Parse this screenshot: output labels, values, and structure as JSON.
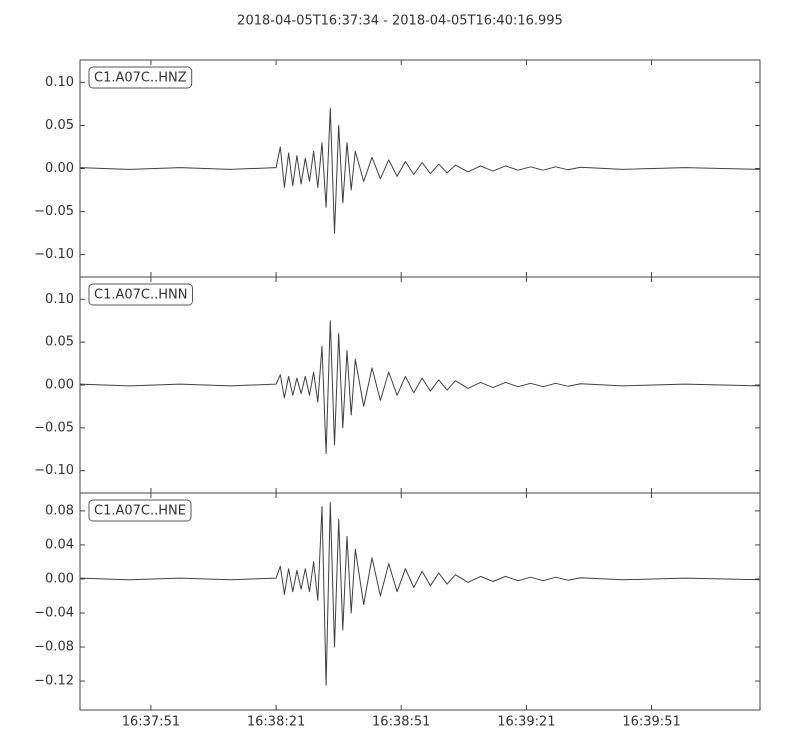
{
  "chart_data": [
    {
      "type": "line",
      "title": "2018-04-05T16:37:34  -  2018-04-05T16:40:16.995",
      "label": "C1.A07C..HNZ",
      "color": "#404040",
      "xlim": [
        0,
        162.995
      ],
      "ylim": [
        -0.126,
        0.126
      ],
      "yticks": [
        {
          "value": 0.1,
          "label": "0.10"
        },
        {
          "value": 0.05,
          "label": "0.05"
        },
        {
          "value": 0,
          "label": "0.00"
        },
        {
          "value": -0.05,
          "label": "−0.05"
        },
        {
          "value": -0.1,
          "label": "−0.10"
        }
      ],
      "x": [
        0,
        12,
        24,
        36,
        47,
        48,
        49,
        50,
        51,
        52,
        53,
        54,
        55,
        56,
        57,
        58,
        59,
        60,
        61,
        62,
        63,
        64,
        65,
        66,
        68,
        70,
        72,
        74,
        76,
        78,
        80,
        82,
        84,
        86,
        88,
        90,
        93,
        96,
        99,
        102,
        105,
        108,
        111,
        114,
        117,
        120,
        130,
        145,
        163
      ],
      "values": [
        0.001,
        -0.001,
        0.001,
        -0.001,
        0.001,
        0.025,
        -0.022,
        0.018,
        -0.02,
        0.015,
        -0.018,
        0.012,
        -0.015,
        0.02,
        -0.022,
        0.03,
        -0.045,
        0.07,
        -0.075,
        0.05,
        -0.04,
        0.03,
        -0.025,
        0.02,
        -0.015,
        0.013,
        -0.012,
        0.01,
        -0.009,
        0.008,
        -0.007,
        0.007,
        -0.006,
        0.005,
        -0.005,
        0.004,
        -0.004,
        0.003,
        -0.003,
        0.003,
        -0.002,
        0.002,
        -0.002,
        0.002,
        -0.0015,
        0.0015,
        -0.001,
        0.001,
        -0.001
      ]
    },
    {
      "type": "line",
      "label": "C1.A07C..HNN",
      "color": "#404040",
      "xlim": [
        0,
        162.995
      ],
      "ylim": [
        -0.126,
        0.126
      ],
      "yticks": [
        {
          "value": 0.1,
          "label": "0.10"
        },
        {
          "value": 0.05,
          "label": "0.05"
        },
        {
          "value": 0,
          "label": "0.00"
        },
        {
          "value": -0.05,
          "label": "−0.05"
        },
        {
          "value": -0.1,
          "label": "−0.10"
        }
      ],
      "x": [
        0,
        12,
        24,
        36,
        47,
        48,
        49,
        50,
        51,
        52,
        53,
        54,
        55,
        56,
        57,
        58,
        59,
        60,
        61,
        62,
        63,
        64,
        65,
        66,
        68,
        70,
        72,
        74,
        76,
        78,
        80,
        82,
        84,
        86,
        88,
        90,
        93,
        96,
        99,
        102,
        105,
        108,
        111,
        114,
        117,
        120,
        130,
        145,
        163
      ],
      "values": [
        0.001,
        -0.001,
        0.001,
        -0.001,
        0.001,
        0.012,
        -0.015,
        0.01,
        -0.012,
        0.008,
        -0.01,
        0.01,
        -0.012,
        0.015,
        -0.02,
        0.045,
        -0.08,
        0.075,
        -0.07,
        0.06,
        -0.05,
        0.04,
        -0.035,
        0.03,
        -0.025,
        0.02,
        -0.018,
        0.015,
        -0.012,
        0.01,
        -0.009,
        0.008,
        -0.007,
        0.006,
        -0.006,
        0.005,
        -0.004,
        0.003,
        -0.003,
        0.003,
        -0.002,
        0.002,
        -0.002,
        0.002,
        -0.0015,
        0.0015,
        -0.001,
        0.001,
        -0.001
      ]
    },
    {
      "type": "line",
      "label": "C1.A07C..HNE",
      "color": "#404040",
      "xlim": [
        0,
        162.995
      ],
      "ylim": [
        -0.154,
        0.101
      ],
      "yticks": [
        {
          "value": 0.08,
          "label": "0.08"
        },
        {
          "value": 0.04,
          "label": "0.04"
        },
        {
          "value": 0,
          "label": "0.00"
        },
        {
          "value": -0.04,
          "label": "−0.04"
        },
        {
          "value": -0.08,
          "label": "−0.08"
        },
        {
          "value": -0.12,
          "label": "−0.12"
        }
      ],
      "xticks": [
        {
          "value": 17,
          "label": "16:37:51"
        },
        {
          "value": 47,
          "label": "16:38:21"
        },
        {
          "value": 77,
          "label": "16:38:51"
        },
        {
          "value": 107,
          "label": "16:39:21"
        },
        {
          "value": 137,
          "label": "16:39:51"
        }
      ],
      "x": [
        0,
        12,
        24,
        36,
        47,
        48,
        49,
        50,
        51,
        52,
        53,
        54,
        55,
        56,
        57,
        58,
        59,
        60,
        61,
        62,
        63,
        64,
        65,
        66,
        68,
        70,
        72,
        74,
        76,
        78,
        80,
        82,
        84,
        86,
        88,
        90,
        93,
        96,
        99,
        102,
        105,
        108,
        111,
        114,
        117,
        120,
        130,
        145,
        163
      ],
      "values": [
        0.001,
        -0.001,
        0.001,
        -0.001,
        0.001,
        0.015,
        -0.018,
        0.012,
        -0.015,
        0.01,
        -0.012,
        0.012,
        -0.015,
        0.02,
        -0.025,
        0.085,
        -0.125,
        0.09,
        -0.08,
        0.07,
        -0.06,
        0.05,
        -0.04,
        0.035,
        -0.03,
        0.025,
        -0.02,
        0.018,
        -0.015,
        0.012,
        -0.01,
        0.009,
        -0.008,
        0.007,
        -0.006,
        0.005,
        -0.004,
        0.003,
        -0.003,
        0.003,
        -0.002,
        0.002,
        -0.002,
        0.002,
        -0.0015,
        0.0015,
        -0.001,
        0.001,
        -0.001
      ]
    }
  ]
}
